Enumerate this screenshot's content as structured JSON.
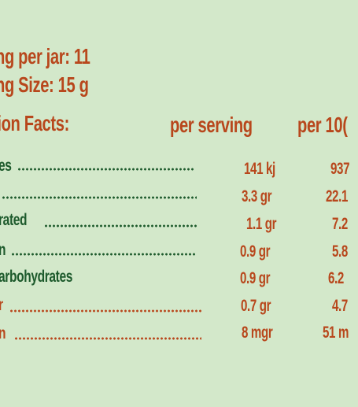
{
  "header": {
    "servings_per_jar": "ng per jar: 11",
    "serving_size": "ng Size: 15 g",
    "nutrition_facts": "tion Facts:",
    "col_per_serving": "per serving",
    "col_per_100": "per 10("
  },
  "rows": [
    {
      "label": "es",
      "per_serving": "141 kj",
      "per_100": "937"
    },
    {
      "label": "",
      "per_serving": "3.3 gr",
      "per_100": "22.1"
    },
    {
      "label": "rated",
      "per_serving": "1.1 gr",
      "per_100": "7.2"
    },
    {
      "label": "n",
      "per_serving": "0.9 gr",
      "per_100": "5.8"
    },
    {
      "label": "arbohydrates",
      "per_serving": "0.9 gr",
      "per_100": "6.2"
    },
    {
      "label": "r",
      "per_serving": "0.7 gr",
      "per_100": "4.7"
    },
    {
      "label": "n",
      "per_serving": "8 mgr",
      "per_100": "51  m"
    }
  ],
  "colors": {
    "background": "#d3e8ca",
    "accent_orange": "#b8471c",
    "label_green": "#1d5a2c"
  }
}
